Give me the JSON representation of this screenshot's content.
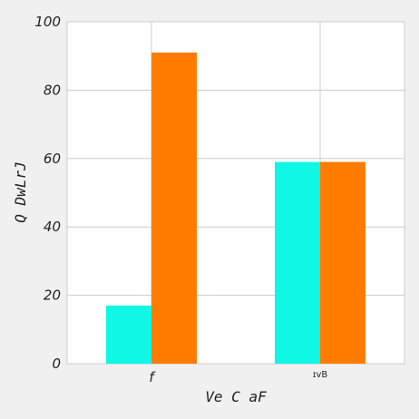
{
  "chart_data": {
    "type": "bar",
    "categories": [
      "f",
      "ɪvB"
    ],
    "series": [
      {
        "values": [
          17,
          59
        ],
        "color": "#11f7e6"
      },
      {
        "values": [
          91,
          59
        ],
        "color": "#ff7c00"
      }
    ],
    "xlabel": "Ve C aF",
    "ylabel": "Q DwLrJ",
    "ylim": [
      0,
      100
    ],
    "yticks": [
      0,
      20,
      40,
      60,
      80,
      100
    ],
    "grid": true,
    "background": "#f0f0f0",
    "plot_background": "#ffffff",
    "grid_color": "#cccccc"
  }
}
